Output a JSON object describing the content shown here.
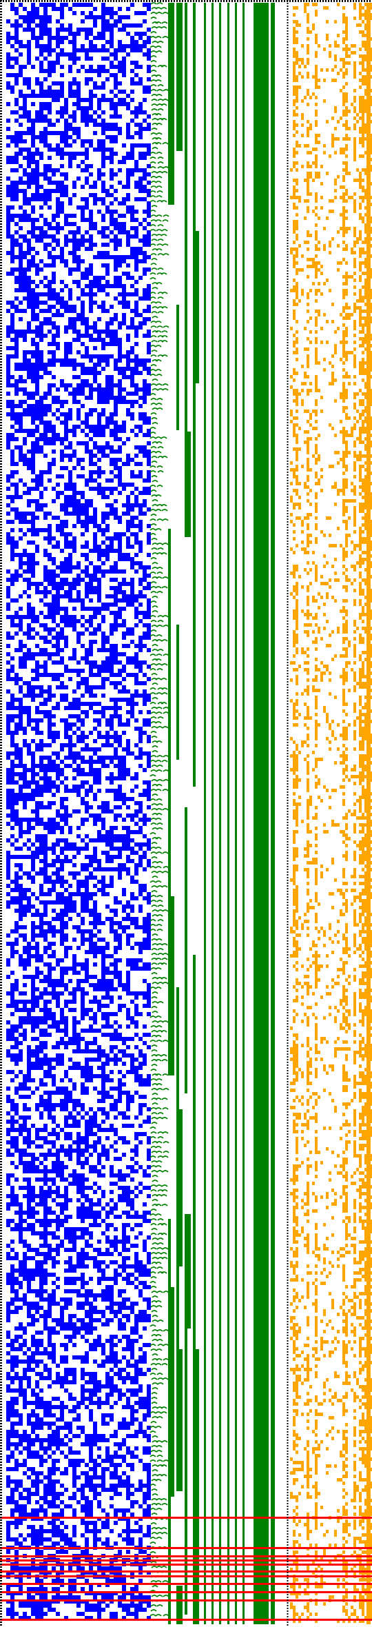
{
  "colors": {
    "background": "#ffffff",
    "blue_cells": "#0000ff",
    "green_wires": "#008000",
    "orange_cells": "#ffa500",
    "red_lines": "#ff0000",
    "border_dots": "#000000"
  },
  "panels": [
    {
      "name": "blue-cell-grid",
      "role": "random blue cell pattern"
    },
    {
      "name": "green-wire-column",
      "role": "vertical green lines with small arcs"
    },
    {
      "name": "orange-cell-grid",
      "role": "orange cell pattern"
    }
  ],
  "red_lines_visible": true
}
